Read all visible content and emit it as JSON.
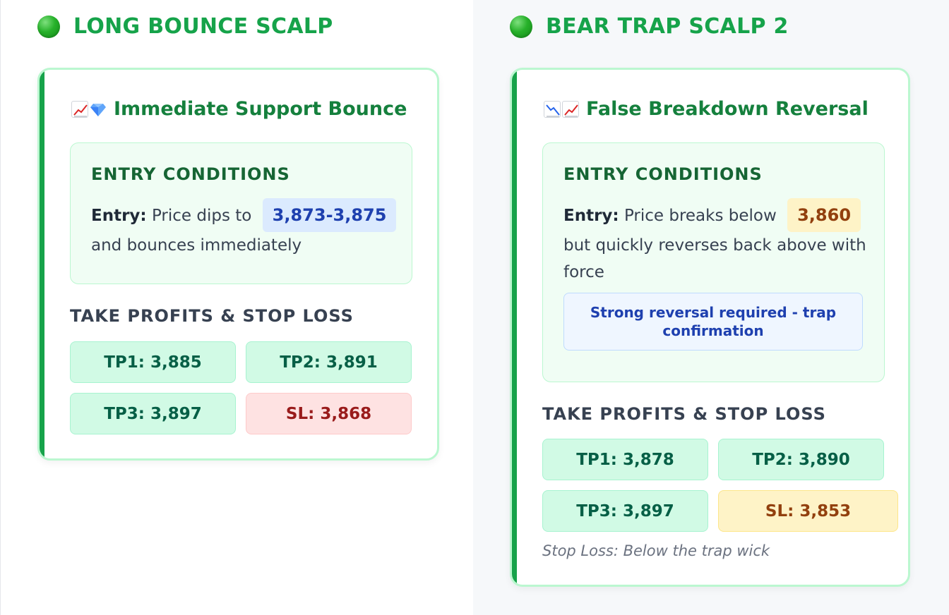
{
  "left": {
    "title": "LONG BOUNCE SCALP",
    "card_title": "Immediate Support Bounce",
    "icons": [
      "chart-increasing-icon",
      "gem-icon"
    ],
    "entry_heading": "ENTRY CONDITIONS",
    "entry_label": "Entry:",
    "entry_before": "Price dips to",
    "entry_value": "3,873-3,875",
    "entry_after": "and bounces immediately",
    "tp_heading": "TAKE PROFITS & STOP LOSS",
    "tp1": "TP1: 3,885",
    "tp2": "TP2: 3,891",
    "tp3": "TP3: 3,897",
    "sl": "SL: 3,868"
  },
  "right": {
    "title": "BEAR TRAP SCALP 2",
    "card_title": "False Breakdown Reversal",
    "icons": [
      "chart-decreasing-icon",
      "chart-increasing-icon"
    ],
    "entry_heading": "ENTRY CONDITIONS",
    "entry_label": "Entry:",
    "entry_before": "Price breaks below",
    "entry_value": "3,860",
    "entry_after": "but quickly reverses back above with force",
    "note": "Strong reversal required - trap confirmation",
    "tp_heading": "TAKE PROFITS & STOP LOSS",
    "tp1": "TP1: 3,878",
    "tp2": "TP2: 3,890",
    "tp3": "TP3: 3,897",
    "sl": "SL: 3,853",
    "sl_note": "Stop Loss: Below the trap wick"
  },
  "colors": {
    "accent_green": "#16a34a",
    "tp_bg": "#d1fae5",
    "sl_red_bg": "#fee2e2",
    "sl_amber_bg": "#fef3c7",
    "pill_blue": "#dbeafe"
  }
}
